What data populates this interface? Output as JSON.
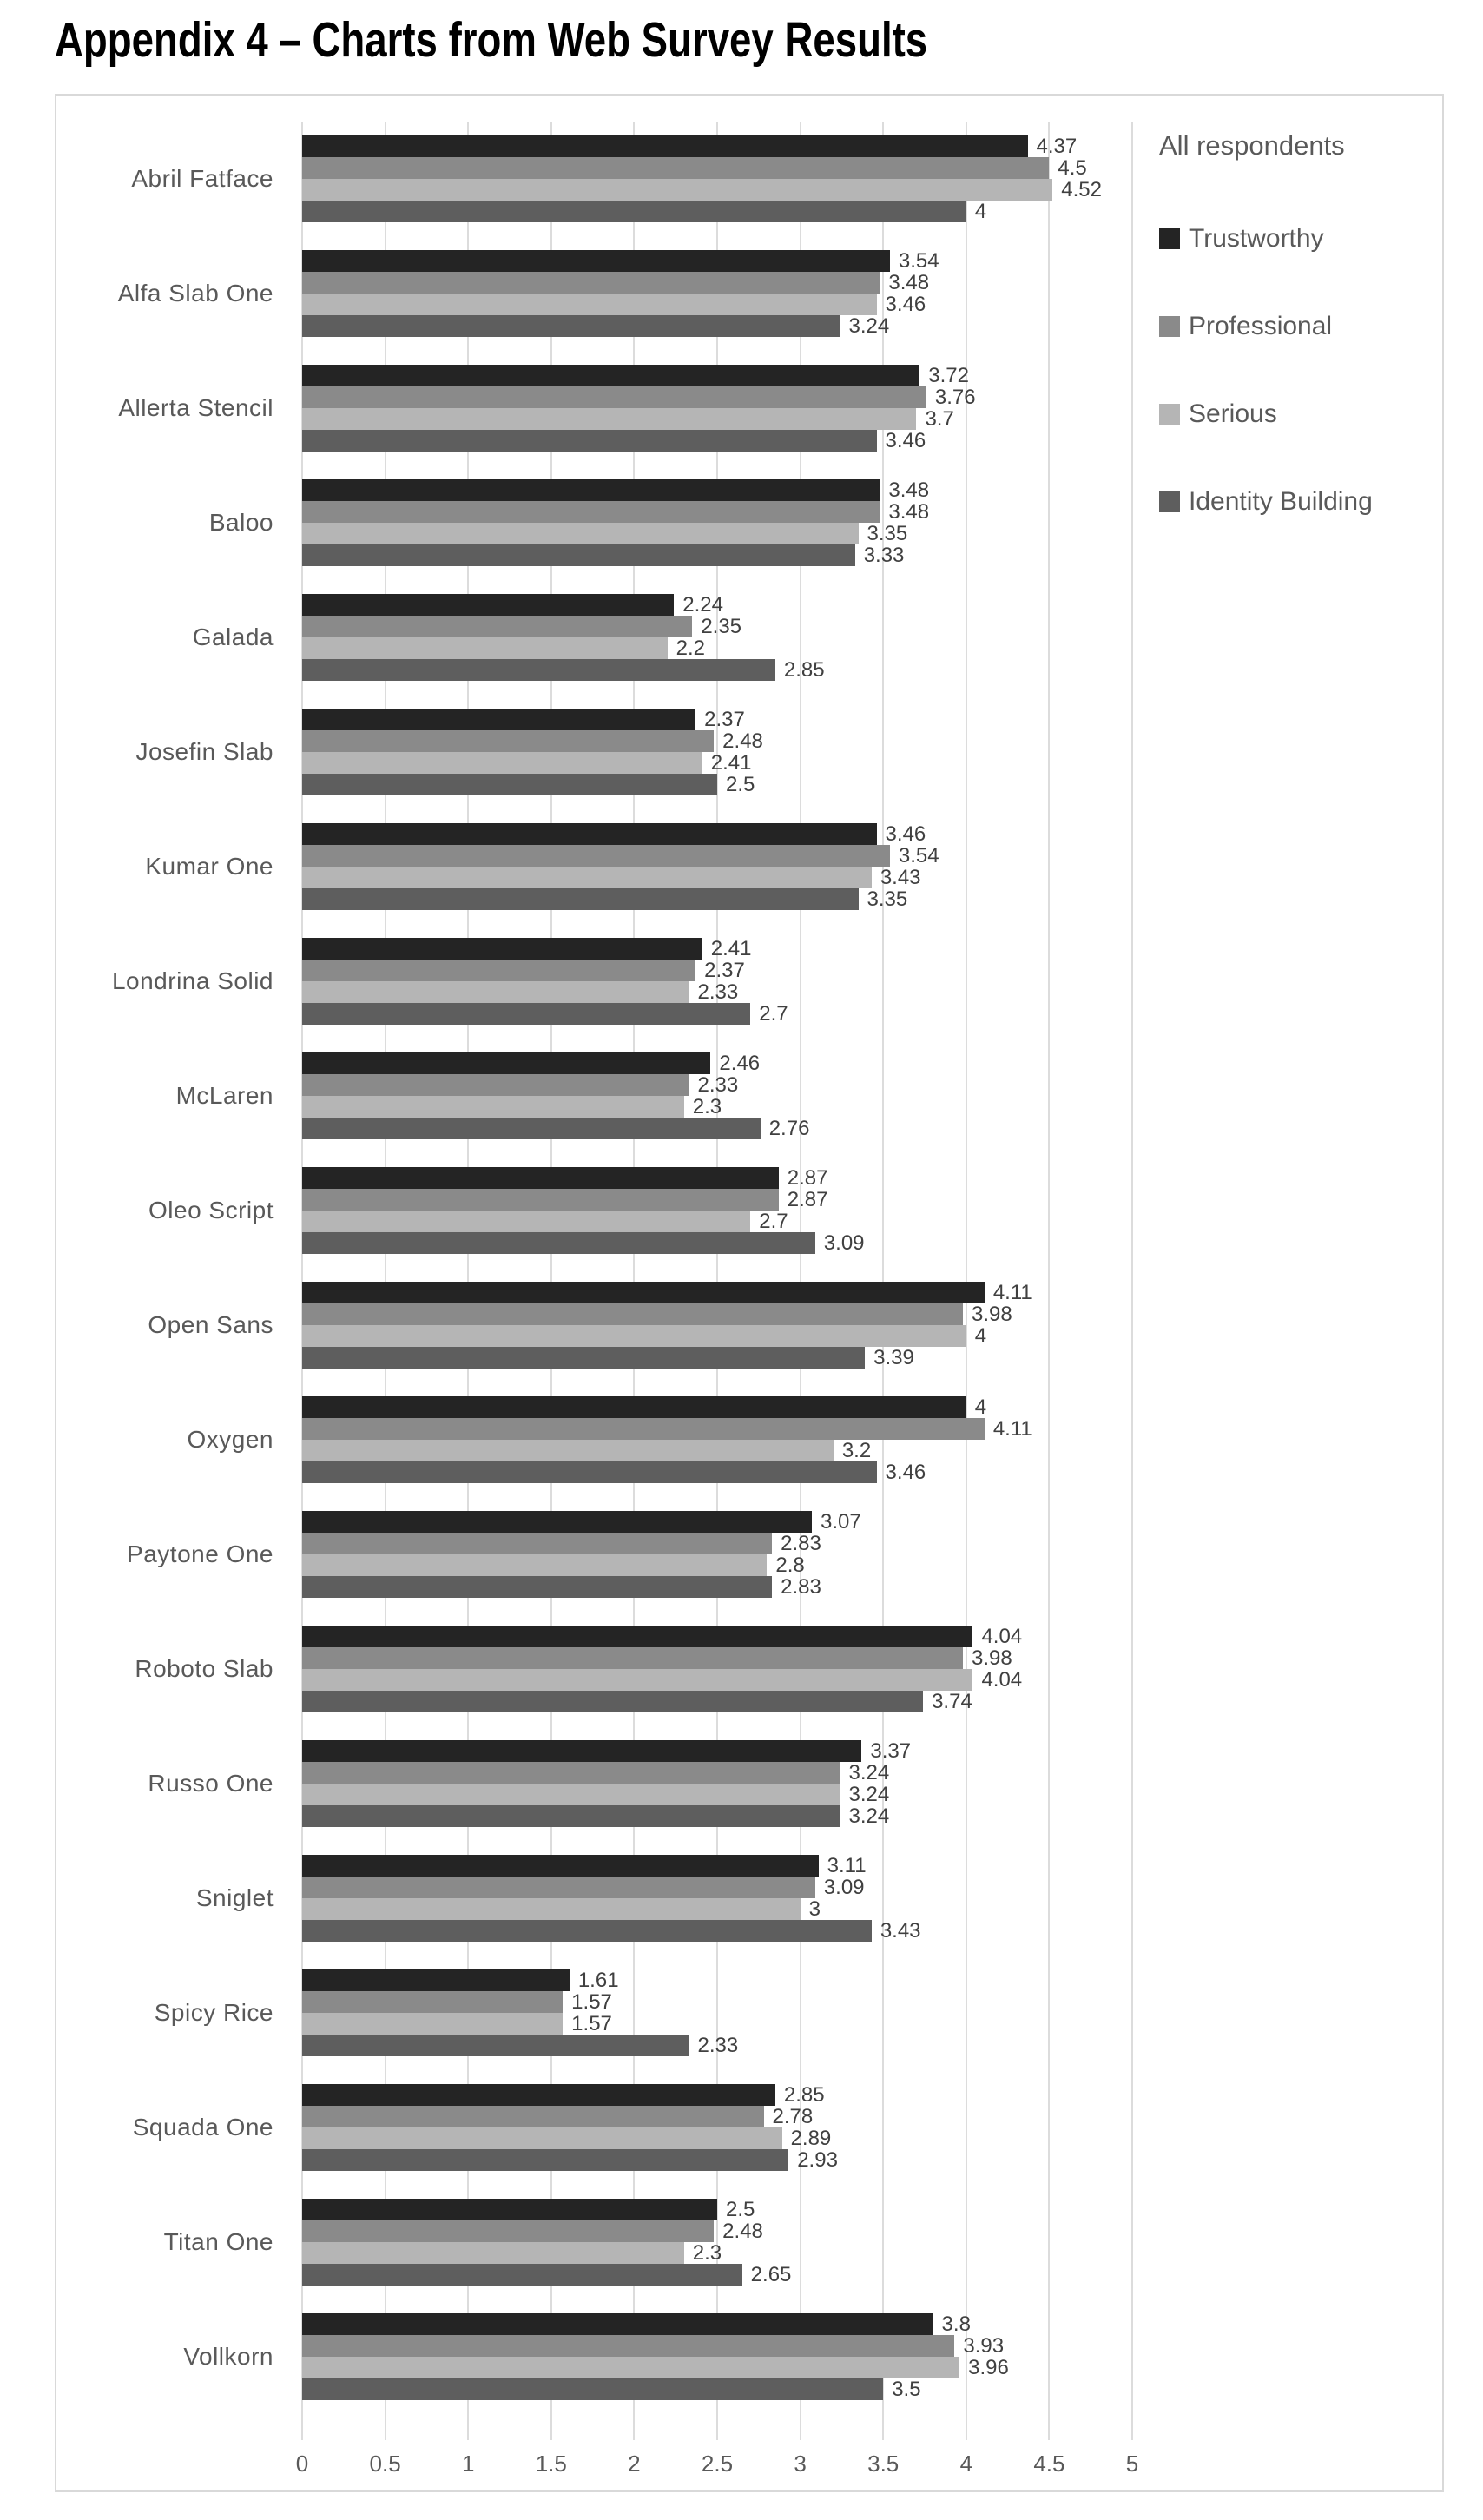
{
  "page_title": "Appendix 4 – Charts from Web Survey Results",
  "chart": {
    "legend_title": "All respondents"
  },
  "colors": {
    "background": "#ffffff",
    "frame_border": "#d9d9d9",
    "gridline": "#dcdcdc",
    "axis_text": "#595959",
    "category_text": "#595959",
    "value_label_text": "#404040",
    "legend_text": "#595959",
    "title_text": "#000000"
  },
  "chart_data": {
    "type": "bar",
    "orientation": "horizontal",
    "title": "Appendix 4 – Charts from Web Survey Results",
    "legend_title": "All respondents",
    "legend_position": "right",
    "grid": true,
    "value_labels": true,
    "xlim": [
      0,
      5
    ],
    "x_ticks": [
      "0",
      "0.5",
      "1",
      "1.5",
      "2",
      "2.5",
      "3",
      "3.5",
      "4",
      "4.5",
      "5"
    ],
    "categories": [
      "Abril Fatface",
      "Alfa Slab One",
      "Allerta Stencil",
      "Baloo",
      "Galada",
      "Josefin Slab",
      "Kumar One",
      "Londrina Solid",
      "McLaren",
      "Oleo Script",
      "Open Sans",
      "Oxygen",
      "Paytone One",
      "Roboto Slab",
      "Russo One",
      "Sniglet",
      "Spicy Rice",
      "Squada One",
      "Titan One",
      "Vollkorn"
    ],
    "series": [
      {
        "name": "Trustworthy",
        "color": "#242424",
        "values": [
          4.37,
          3.54,
          3.72,
          3.48,
          2.24,
          2.37,
          3.46,
          2.41,
          2.46,
          2.87,
          4.11,
          4,
          3.07,
          4.04,
          3.37,
          3.11,
          1.61,
          2.85,
          2.5,
          3.8
        ]
      },
      {
        "name": "Professional",
        "color": "#8a8a8a",
        "values": [
          4.5,
          3.48,
          3.76,
          3.48,
          2.35,
          2.48,
          3.54,
          2.37,
          2.33,
          2.87,
          3.98,
          4.11,
          2.83,
          3.98,
          3.24,
          3.09,
          1.57,
          2.78,
          2.48,
          3.93
        ]
      },
      {
        "name": "Serious",
        "color": "#b5b5b5",
        "values": [
          4.52,
          3.46,
          3.7,
          3.35,
          2.2,
          2.41,
          3.43,
          2.33,
          2.3,
          2.7,
          4,
          3.2,
          2.8,
          4.04,
          3.24,
          3,
          1.57,
          2.89,
          2.3,
          3.96
        ]
      },
      {
        "name": "Identity Building",
        "color": "#5e5e5e",
        "values": [
          4,
          3.24,
          3.46,
          3.33,
          2.85,
          2.5,
          3.35,
          2.7,
          2.76,
          3.09,
          3.39,
          3.46,
          2.83,
          3.74,
          3.24,
          3.43,
          2.33,
          2.93,
          2.65,
          3.5
        ]
      }
    ]
  }
}
